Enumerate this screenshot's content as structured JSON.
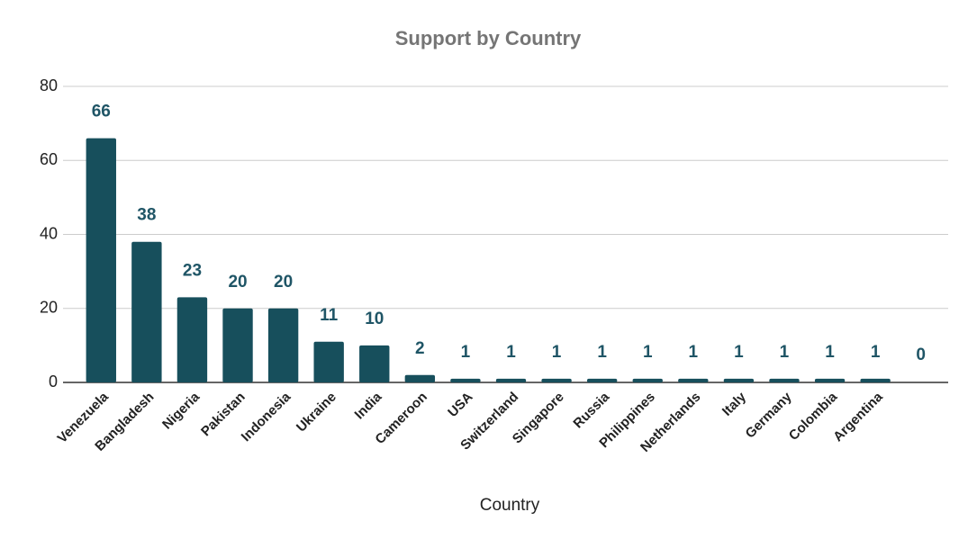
{
  "chart_data": {
    "type": "bar",
    "title": "Support by Country",
    "x_label": "Country",
    "categories": [
      "Venezuela",
      "Bangladesh",
      "Nigeria",
      "Pakistan",
      "Indonesia",
      "Ukraine",
      "India",
      "Cameroon",
      "USA",
      "Switzerland",
      "Singapore",
      "Russia",
      "Philippines",
      "Netherlands",
      "Italy",
      "Germany",
      "Colombia",
      "Argentina",
      null
    ],
    "values": [
      66,
      38,
      23,
      20,
      20,
      11,
      10,
      2,
      1,
      1,
      1,
      1,
      1,
      1,
      1,
      1,
      1,
      1,
      0
    ],
    "color": "#174f5c",
    "ylim": [
      0,
      80
    ],
    "yticks": [
      0,
      20,
      40,
      60,
      80
    ],
    "grid": true
  }
}
